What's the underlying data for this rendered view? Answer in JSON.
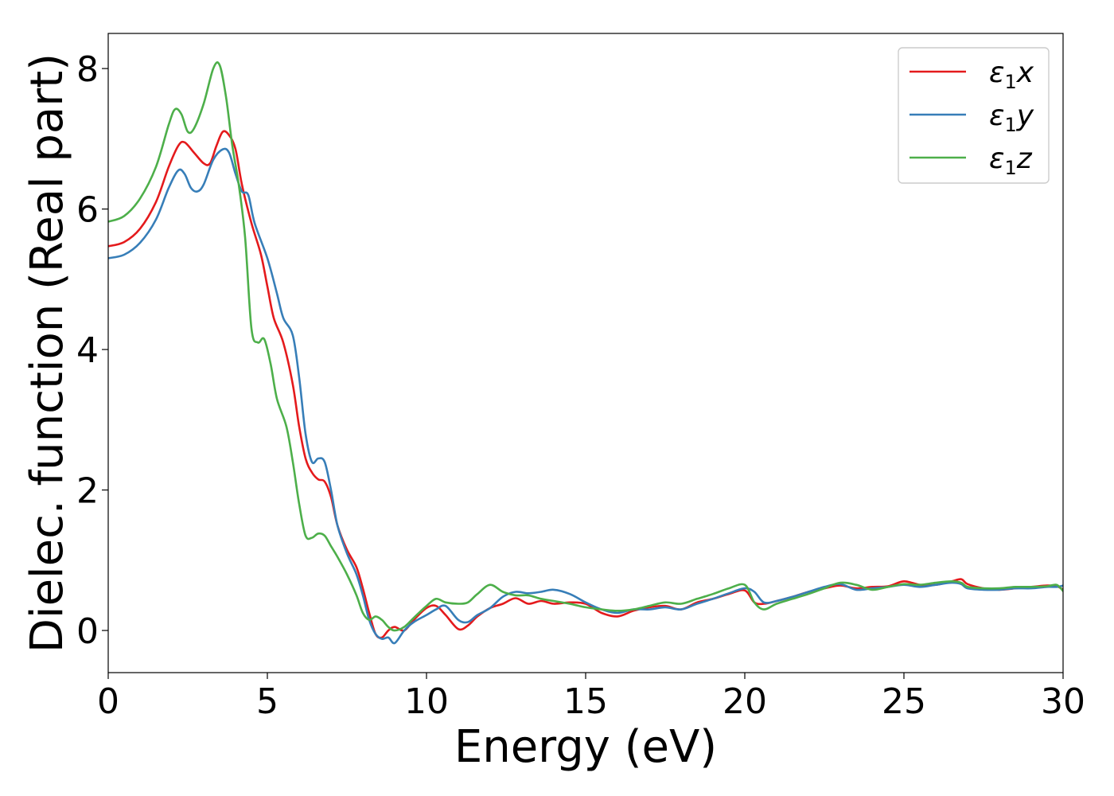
{
  "chart_data": {
    "type": "line",
    "xlabel": "Energy (eV)",
    "ylabel": "Dielec. function (Real part)",
    "xlim": [
      0,
      30
    ],
    "ylim": [
      -0.6,
      8.5
    ],
    "xticks": [
      0,
      5,
      10,
      15,
      20,
      25,
      30
    ],
    "yticks": [
      0,
      2,
      4,
      6,
      8
    ],
    "grid": false,
    "legend_position": "top-right",
    "series": [
      {
        "name": "ε1x",
        "legend_base": "ε",
        "legend_sub": "1",
        "legend_suffix": "x",
        "color": "#e41a1c",
        "points": [
          [
            0,
            5.47
          ],
          [
            0.5,
            5.53
          ],
          [
            1.0,
            5.72
          ],
          [
            1.5,
            6.1
          ],
          [
            1.9,
            6.6
          ],
          [
            2.2,
            6.9
          ],
          [
            2.4,
            6.95
          ],
          [
            2.7,
            6.8
          ],
          [
            3.0,
            6.65
          ],
          [
            3.2,
            6.65
          ],
          [
            3.4,
            6.9
          ],
          [
            3.6,
            7.1
          ],
          [
            3.8,
            7.05
          ],
          [
            4.0,
            6.85
          ],
          [
            4.2,
            6.35
          ],
          [
            4.5,
            5.8
          ],
          [
            4.8,
            5.35
          ],
          [
            5.0,
            4.9
          ],
          [
            5.2,
            4.45
          ],
          [
            5.5,
            4.1
          ],
          [
            5.8,
            3.5
          ],
          [
            6.0,
            2.9
          ],
          [
            6.2,
            2.45
          ],
          [
            6.4,
            2.25
          ],
          [
            6.6,
            2.15
          ],
          [
            6.8,
            2.12
          ],
          [
            7.0,
            1.9
          ],
          [
            7.2,
            1.5
          ],
          [
            7.5,
            1.15
          ],
          [
            7.8,
            0.9
          ],
          [
            8.0,
            0.6
          ],
          [
            8.2,
            0.25
          ],
          [
            8.4,
            -0.05
          ],
          [
            8.6,
            -0.1
          ],
          [
            8.8,
            0.0
          ],
          [
            9.0,
            0.05
          ],
          [
            9.3,
            0.0
          ],
          [
            9.6,
            0.15
          ],
          [
            10.0,
            0.32
          ],
          [
            10.3,
            0.35
          ],
          [
            10.6,
            0.22
          ],
          [
            11.0,
            0.02
          ],
          [
            11.3,
            0.07
          ],
          [
            11.6,
            0.2
          ],
          [
            12.0,
            0.32
          ],
          [
            12.4,
            0.38
          ],
          [
            12.8,
            0.46
          ],
          [
            13.2,
            0.38
          ],
          [
            13.6,
            0.42
          ],
          [
            14.0,
            0.38
          ],
          [
            14.5,
            0.4
          ],
          [
            15.0,
            0.38
          ],
          [
            15.5,
            0.25
          ],
          [
            16.0,
            0.2
          ],
          [
            16.5,
            0.28
          ],
          [
            17.0,
            0.33
          ],
          [
            17.5,
            0.35
          ],
          [
            18.0,
            0.3
          ],
          [
            18.5,
            0.4
          ],
          [
            19.0,
            0.45
          ],
          [
            19.5,
            0.52
          ],
          [
            20.0,
            0.57
          ],
          [
            20.3,
            0.4
          ],
          [
            20.6,
            0.38
          ],
          [
            21.0,
            0.42
          ],
          [
            21.5,
            0.48
          ],
          [
            22.0,
            0.55
          ],
          [
            22.5,
            0.6
          ],
          [
            23.0,
            0.64
          ],
          [
            23.5,
            0.6
          ],
          [
            24.0,
            0.62
          ],
          [
            24.5,
            0.63
          ],
          [
            25.0,
            0.7
          ],
          [
            25.5,
            0.65
          ],
          [
            26.0,
            0.65
          ],
          [
            26.5,
            0.7
          ],
          [
            26.8,
            0.73
          ],
          [
            27.0,
            0.66
          ],
          [
            27.5,
            0.6
          ],
          [
            28.0,
            0.58
          ],
          [
            28.5,
            0.6
          ],
          [
            29.0,
            0.62
          ],
          [
            29.5,
            0.64
          ],
          [
            29.8,
            0.63
          ],
          [
            30.0,
            0.58
          ]
        ]
      },
      {
        "name": "ε1y",
        "legend_base": "ε",
        "legend_sub": "1",
        "legend_suffix": "y",
        "color": "#377eb8",
        "points": [
          [
            0,
            5.3
          ],
          [
            0.5,
            5.35
          ],
          [
            1.0,
            5.52
          ],
          [
            1.5,
            5.85
          ],
          [
            1.9,
            6.3
          ],
          [
            2.2,
            6.55
          ],
          [
            2.4,
            6.5
          ],
          [
            2.6,
            6.3
          ],
          [
            2.8,
            6.25
          ],
          [
            3.0,
            6.35
          ],
          [
            3.3,
            6.7
          ],
          [
            3.6,
            6.85
          ],
          [
            3.8,
            6.8
          ],
          [
            4.0,
            6.5
          ],
          [
            4.2,
            6.25
          ],
          [
            4.4,
            6.2
          ],
          [
            4.6,
            5.8
          ],
          [
            5.0,
            5.3
          ],
          [
            5.3,
            4.8
          ],
          [
            5.5,
            4.45
          ],
          [
            5.8,
            4.2
          ],
          [
            6.0,
            3.6
          ],
          [
            6.2,
            2.8
          ],
          [
            6.4,
            2.4
          ],
          [
            6.6,
            2.45
          ],
          [
            6.8,
            2.4
          ],
          [
            7.0,
            2.0
          ],
          [
            7.2,
            1.5
          ],
          [
            7.5,
            1.1
          ],
          [
            7.8,
            0.8
          ],
          [
            8.0,
            0.5
          ],
          [
            8.2,
            0.15
          ],
          [
            8.4,
            -0.05
          ],
          [
            8.6,
            -0.12
          ],
          [
            8.8,
            -0.1
          ],
          [
            9.0,
            -0.18
          ],
          [
            9.3,
            0.0
          ],
          [
            9.6,
            0.12
          ],
          [
            10.0,
            0.22
          ],
          [
            10.3,
            0.3
          ],
          [
            10.6,
            0.35
          ],
          [
            11.0,
            0.15
          ],
          [
            11.3,
            0.12
          ],
          [
            11.6,
            0.22
          ],
          [
            12.0,
            0.32
          ],
          [
            12.4,
            0.48
          ],
          [
            12.8,
            0.55
          ],
          [
            13.2,
            0.53
          ],
          [
            13.6,
            0.55
          ],
          [
            14.0,
            0.58
          ],
          [
            14.5,
            0.52
          ],
          [
            15.0,
            0.4
          ],
          [
            15.5,
            0.3
          ],
          [
            16.0,
            0.25
          ],
          [
            16.5,
            0.3
          ],
          [
            17.0,
            0.3
          ],
          [
            17.5,
            0.33
          ],
          [
            18.0,
            0.3
          ],
          [
            18.5,
            0.38
          ],
          [
            19.0,
            0.45
          ],
          [
            19.5,
            0.53
          ],
          [
            20.0,
            0.6
          ],
          [
            20.3,
            0.55
          ],
          [
            20.6,
            0.4
          ],
          [
            21.0,
            0.42
          ],
          [
            21.5,
            0.48
          ],
          [
            22.0,
            0.55
          ],
          [
            22.5,
            0.62
          ],
          [
            23.0,
            0.66
          ],
          [
            23.5,
            0.58
          ],
          [
            24.0,
            0.6
          ],
          [
            24.5,
            0.62
          ],
          [
            25.0,
            0.65
          ],
          [
            25.5,
            0.62
          ],
          [
            26.0,
            0.65
          ],
          [
            26.5,
            0.68
          ],
          [
            26.8,
            0.66
          ],
          [
            27.0,
            0.6
          ],
          [
            27.5,
            0.58
          ],
          [
            28.0,
            0.58
          ],
          [
            28.5,
            0.6
          ],
          [
            29.0,
            0.6
          ],
          [
            29.5,
            0.62
          ],
          [
            29.8,
            0.62
          ],
          [
            30.0,
            0.64
          ]
        ]
      },
      {
        "name": "ε1z",
        "legend_base": "ε",
        "legend_sub": "1",
        "legend_suffix": "z",
        "color": "#4daf4a",
        "points": [
          [
            0,
            5.82
          ],
          [
            0.5,
            5.9
          ],
          [
            1.0,
            6.15
          ],
          [
            1.5,
            6.6
          ],
          [
            1.9,
            7.2
          ],
          [
            2.1,
            7.42
          ],
          [
            2.3,
            7.35
          ],
          [
            2.5,
            7.1
          ],
          [
            2.7,
            7.15
          ],
          [
            3.0,
            7.5
          ],
          [
            3.3,
            8.0
          ],
          [
            3.5,
            8.05
          ],
          [
            3.7,
            7.6
          ],
          [
            3.9,
            6.9
          ],
          [
            4.1,
            6.35
          ],
          [
            4.3,
            5.6
          ],
          [
            4.5,
            4.3
          ],
          [
            4.7,
            4.1
          ],
          [
            4.9,
            4.15
          ],
          [
            5.1,
            3.8
          ],
          [
            5.3,
            3.3
          ],
          [
            5.6,
            2.9
          ],
          [
            5.8,
            2.4
          ],
          [
            6.0,
            1.8
          ],
          [
            6.2,
            1.35
          ],
          [
            6.4,
            1.32
          ],
          [
            6.6,
            1.38
          ],
          [
            6.8,
            1.35
          ],
          [
            7.0,
            1.2
          ],
          [
            7.2,
            1.05
          ],
          [
            7.5,
            0.8
          ],
          [
            7.8,
            0.5
          ],
          [
            8.0,
            0.25
          ],
          [
            8.2,
            0.15
          ],
          [
            8.4,
            0.2
          ],
          [
            8.6,
            0.15
          ],
          [
            8.8,
            0.05
          ],
          [
            9.0,
            0.0
          ],
          [
            9.3,
            0.05
          ],
          [
            9.6,
            0.18
          ],
          [
            10.0,
            0.35
          ],
          [
            10.3,
            0.45
          ],
          [
            10.6,
            0.4
          ],
          [
            11.0,
            0.38
          ],
          [
            11.3,
            0.4
          ],
          [
            11.6,
            0.52
          ],
          [
            12.0,
            0.65
          ],
          [
            12.4,
            0.55
          ],
          [
            12.8,
            0.5
          ],
          [
            13.2,
            0.5
          ],
          [
            13.6,
            0.45
          ],
          [
            14.0,
            0.42
          ],
          [
            14.5,
            0.38
          ],
          [
            15.0,
            0.33
          ],
          [
            15.5,
            0.3
          ],
          [
            16.0,
            0.28
          ],
          [
            16.5,
            0.3
          ],
          [
            17.0,
            0.35
          ],
          [
            17.5,
            0.4
          ],
          [
            18.0,
            0.38
          ],
          [
            18.5,
            0.45
          ],
          [
            19.0,
            0.52
          ],
          [
            19.5,
            0.6
          ],
          [
            20.0,
            0.65
          ],
          [
            20.3,
            0.4
          ],
          [
            20.6,
            0.3
          ],
          [
            21.0,
            0.38
          ],
          [
            21.5,
            0.45
          ],
          [
            22.0,
            0.52
          ],
          [
            22.5,
            0.6
          ],
          [
            23.0,
            0.68
          ],
          [
            23.5,
            0.65
          ],
          [
            24.0,
            0.58
          ],
          [
            24.5,
            0.62
          ],
          [
            25.0,
            0.66
          ],
          [
            25.5,
            0.65
          ],
          [
            26.0,
            0.68
          ],
          [
            26.5,
            0.7
          ],
          [
            26.8,
            0.68
          ],
          [
            27.0,
            0.62
          ],
          [
            27.5,
            0.6
          ],
          [
            28.0,
            0.6
          ],
          [
            28.5,
            0.62
          ],
          [
            29.0,
            0.62
          ],
          [
            29.5,
            0.63
          ],
          [
            29.8,
            0.65
          ],
          [
            30.0,
            0.56
          ]
        ]
      }
    ]
  }
}
